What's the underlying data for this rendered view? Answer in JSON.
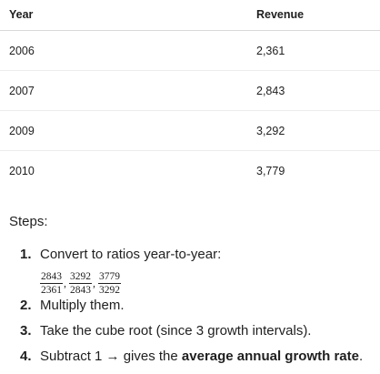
{
  "table": {
    "headers": {
      "year": "Year",
      "revenue": "Revenue"
    },
    "rows": [
      {
        "year": "2006",
        "revenue": "2,361"
      },
      {
        "year": "2007",
        "revenue": "2,843"
      },
      {
        "year": "2009",
        "revenue": "3,292"
      },
      {
        "year": "2010",
        "revenue": "3,779"
      }
    ]
  },
  "steps": {
    "title": "Steps:",
    "items": [
      {
        "number": "1.",
        "text": "Convert to ratios year-to-year:",
        "fractions": [
          {
            "numerator": "2843",
            "denominator": "2361"
          },
          {
            "numerator": "3292",
            "denominator": "2843"
          },
          {
            "numerator": "3779",
            "denominator": "3292"
          }
        ]
      },
      {
        "number": "2.",
        "text": "Multiply them."
      },
      {
        "number": "3.",
        "text": "Take the cube root (since 3 growth intervals)."
      },
      {
        "number": "4.",
        "text_before": "Subtract 1 → gives the ",
        "text_bold": "average annual growth rate",
        "text_after": "."
      }
    ]
  }
}
